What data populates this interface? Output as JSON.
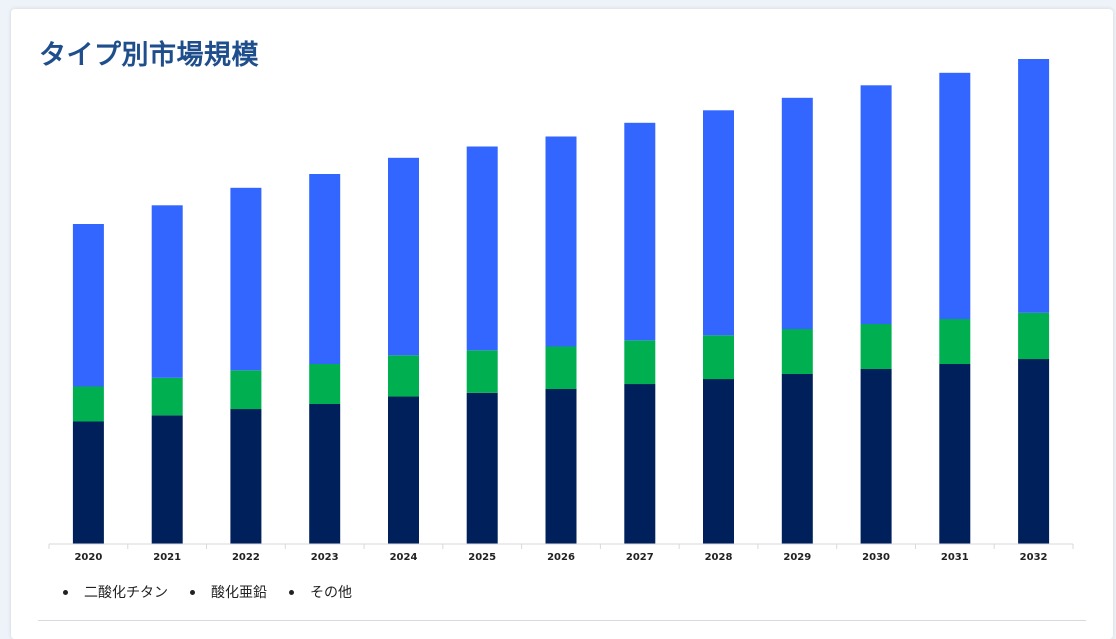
{
  "page": {
    "title": "タイプ別市場規模"
  },
  "legend": {
    "items": [
      {
        "label": "二酸化チタン"
      },
      {
        "label": "酸化亜鉛"
      },
      {
        "label": "その他"
      }
    ]
  },
  "chart_data": {
    "type": "bar",
    "stacked": true,
    "title": "タイプ別市場規模",
    "xlabel": "",
    "ylabel": "",
    "categories": [
      "2020",
      "2021",
      "2022",
      "2023",
      "2024",
      "2025",
      "2026",
      "2027",
      "2028",
      "2029",
      "2030",
      "2031",
      "2032"
    ],
    "series": [
      {
        "name": "二酸化チタン",
        "color": "#00205b",
        "values": [
          98,
          103,
          108,
          112,
          118,
          121,
          124,
          128,
          132,
          136,
          140,
          144,
          148
        ]
      },
      {
        "name": "酸化亜鉛",
        "color": "#00b050",
        "values": [
          28,
          30,
          31,
          32,
          33,
          34,
          34,
          35,
          35,
          36,
          36,
          36,
          37
        ]
      },
      {
        "name": "その他",
        "color": "#3366ff",
        "values": [
          130,
          138,
          146,
          152,
          158,
          163,
          168,
          174,
          180,
          185,
          191,
          197,
          203
        ]
      }
    ],
    "ylim": [
      0,
      400
    ],
    "grid": false,
    "y_axis_visible": false,
    "legend_position": "bottom-left"
  }
}
